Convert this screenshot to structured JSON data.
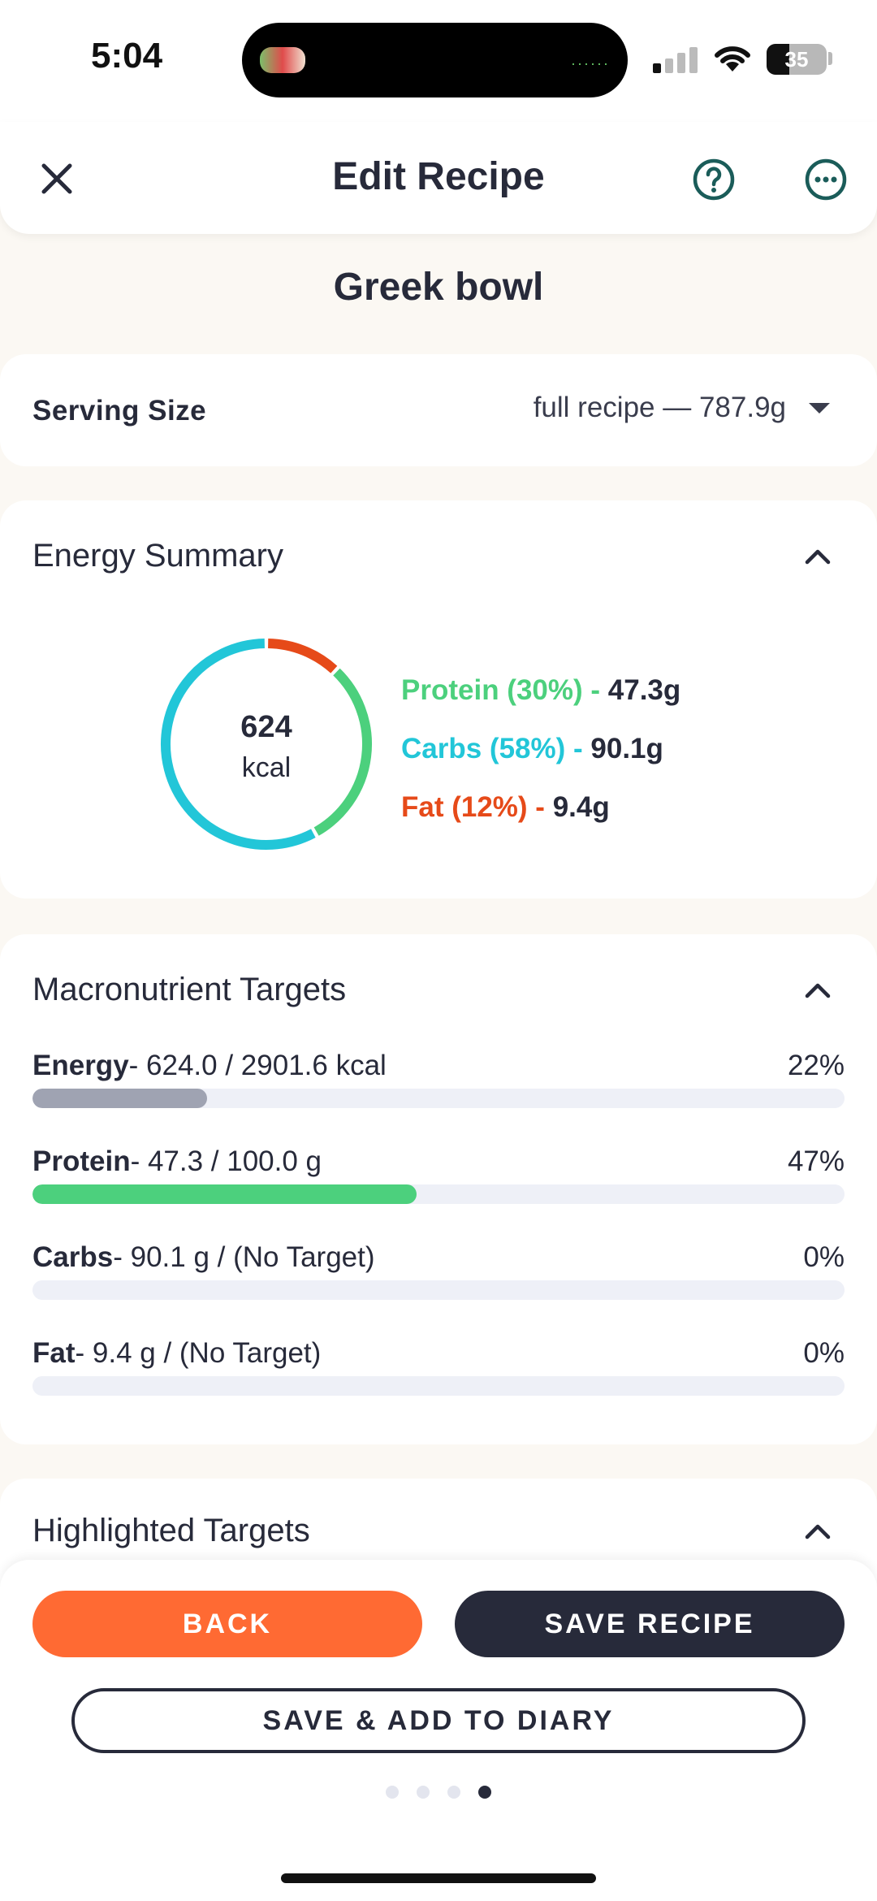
{
  "status_bar": {
    "time": "5:04",
    "battery": "35"
  },
  "header": {
    "title": "Edit Recipe"
  },
  "recipe": {
    "name": "Greek bowl"
  },
  "serving": {
    "label": "Serving Size",
    "value": "full recipe  — 787.9g"
  },
  "energy_summary": {
    "title": "Energy Summary",
    "kcal": "624",
    "unit": "kcal",
    "macros": [
      {
        "label": "Protein (30%) - ",
        "value": "47.3g",
        "percent": 30,
        "color": "#4cd07d"
      },
      {
        "label": "Carbs (58%) - ",
        "value": "90.1g",
        "percent": 58,
        "color": "#22c6d8"
      },
      {
        "label": "Fat (12%) - ",
        "value": "9.4g",
        "percent": 12,
        "color": "#e64a19"
      }
    ]
  },
  "macro_targets": {
    "title": "Macronutrient Targets",
    "rows": [
      {
        "name": "Energy",
        "detail": "- 624.0 / 2901.6 kcal",
        "percent_label": "22%",
        "fraction": 0.215,
        "color": "#9fa3b2"
      },
      {
        "name": "Protein",
        "detail": "- 47.3 / 100.0 g",
        "percent_label": "47%",
        "fraction": 0.473,
        "color": "#4cd07d"
      },
      {
        "name": "Carbs",
        "detail": "- 90.1 g / (No Target)",
        "percent_label": "0%",
        "fraction": 0,
        "color": "#9fa3b2"
      },
      {
        "name": "Fat",
        "detail": "- 9.4 g / (No Target)",
        "percent_label": "0%",
        "fraction": 0,
        "color": "#9fa3b2"
      }
    ]
  },
  "highlighted_targets": {
    "title": "Highlighted Targets"
  },
  "buttons": {
    "back": "BACK",
    "save_recipe": "SAVE RECIPE",
    "save_add_diary": "SAVE & ADD TO DIARY"
  },
  "pager": {
    "count": 4,
    "active_index": 3
  },
  "colors": {
    "accent": "#ff6a33",
    "dark": "#272a3a",
    "teal": "#1a5c59"
  }
}
